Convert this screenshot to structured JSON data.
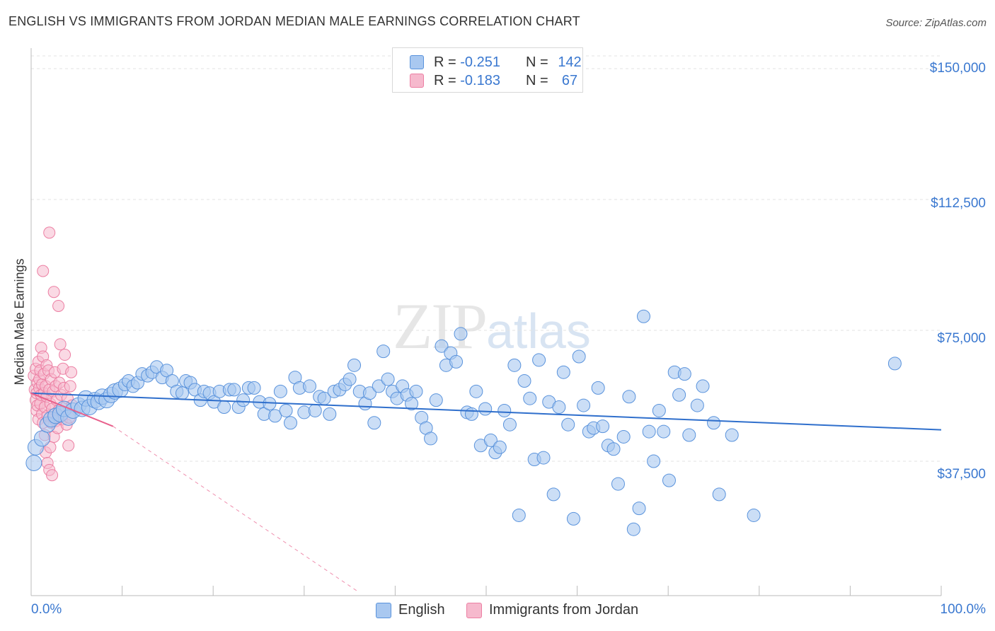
{
  "title": "ENGLISH VS IMMIGRANTS FROM JORDAN MEDIAN MALE EARNINGS CORRELATION CHART",
  "source": "Source: ZipAtlas.com",
  "watermark": {
    "zip": "ZIP",
    "atlas": "atlas"
  },
  "legend": {
    "english": {
      "r_label": "R = ",
      "r_value": "-0.251",
      "n_label": "N = ",
      "n_value": "142"
    },
    "jordan": {
      "r_label": "R = ",
      "r_value": "-0.183",
      "n_label": "N = ",
      "n_value": "67"
    }
  },
  "colors": {
    "english_fill": "#a9c8f0",
    "english_stroke": "#5a93dc",
    "english_line": "#2f6fcc",
    "jordan_fill": "#f6b9cd",
    "jordan_stroke": "#ec7fa3",
    "jordan_line": "#e8608c",
    "grid": "#e3e3e3",
    "axis_text": "#3a78d0"
  },
  "chart_data": {
    "type": "scatter",
    "title": "ENGLISH VS IMMIGRANTS FROM JORDAN MEDIAN MALE EARNINGS CORRELATION CHART",
    "xlabel": "",
    "ylabel": "Median Male Earnings",
    "xlim": [
      0,
      100
    ],
    "ylim": [
      0,
      155000
    ],
    "x_tick_labels": [
      "0.0%",
      "100.0%"
    ],
    "y_ticks": [
      37500,
      75000,
      112500,
      150000
    ],
    "y_tick_labels": [
      "$37,500",
      "$75,000",
      "$112,500",
      "$150,000"
    ],
    "grid": true,
    "series": [
      {
        "name": "English",
        "trend": {
          "x": [
            0,
            100
          ],
          "y": [
            57000,
            46500
          ]
        },
        "points": [
          [
            0.3,
            37000
          ],
          [
            0.5,
            41500
          ],
          [
            1.2,
            44000
          ],
          [
            1.8,
            48000
          ],
          [
            2.2,
            49500
          ],
          [
            2.7,
            50500
          ],
          [
            3.2,
            51000
          ],
          [
            3.6,
            52500
          ],
          [
            4.1,
            50000
          ],
          [
            4.6,
            52000
          ],
          [
            5.2,
            53500
          ],
          [
            5.6,
            52500
          ],
          [
            6.0,
            55500
          ],
          [
            6.4,
            53000
          ],
          [
            7.0,
            55000
          ],
          [
            7.4,
            54500
          ],
          [
            7.8,
            56000
          ],
          [
            8.3,
            55000
          ],
          [
            8.8,
            56500
          ],
          [
            9.2,
            57500
          ],
          [
            9.8,
            58000
          ],
          [
            10.3,
            59500
          ],
          [
            10.7,
            60500
          ],
          [
            11.2,
            59000
          ],
          [
            11.7,
            60000
          ],
          [
            12.2,
            62500
          ],
          [
            12.8,
            62000
          ],
          [
            13.3,
            63000
          ],
          [
            13.8,
            64500
          ],
          [
            14.4,
            61500
          ],
          [
            14.9,
            63500
          ],
          [
            15.5,
            60500
          ],
          [
            16.0,
            57500
          ],
          [
            16.6,
            57000
          ],
          [
            17.0,
            60500
          ],
          [
            17.5,
            60000
          ],
          [
            18.0,
            58000
          ],
          [
            18.6,
            55000
          ],
          [
            19.0,
            57500
          ],
          [
            19.6,
            57000
          ],
          [
            20.1,
            54500
          ],
          [
            20.7,
            57500
          ],
          [
            21.2,
            53000
          ],
          [
            21.8,
            58000
          ],
          [
            22.3,
            58000
          ],
          [
            22.8,
            53000
          ],
          [
            23.3,
            55000
          ],
          [
            23.9,
            58500
          ],
          [
            24.5,
            58500
          ],
          [
            25.1,
            54500
          ],
          [
            25.6,
            51000
          ],
          [
            26.2,
            54000
          ],
          [
            26.8,
            50500
          ],
          [
            27.4,
            57500
          ],
          [
            28.0,
            52000
          ],
          [
            28.5,
            48500
          ],
          [
            29.0,
            61500
          ],
          [
            29.5,
            58500
          ],
          [
            30.0,
            51500
          ],
          [
            30.6,
            59000
          ],
          [
            31.2,
            52000
          ],
          [
            31.7,
            56000
          ],
          [
            32.2,
            55500
          ],
          [
            32.8,
            51000
          ],
          [
            33.3,
            57500
          ],
          [
            33.9,
            58000
          ],
          [
            34.5,
            59500
          ],
          [
            35.0,
            61000
          ],
          [
            35.5,
            65000
          ],
          [
            36.1,
            57500
          ],
          [
            36.7,
            54000
          ],
          [
            37.2,
            57000
          ],
          [
            37.7,
            48500
          ],
          [
            38.2,
            59000
          ],
          [
            38.7,
            69000
          ],
          [
            39.2,
            61000
          ],
          [
            39.7,
            57500
          ],
          [
            40.2,
            55500
          ],
          [
            40.8,
            59000
          ],
          [
            41.3,
            56500
          ],
          [
            41.8,
            54000
          ],
          [
            42.3,
            57500
          ],
          [
            42.9,
            50000
          ],
          [
            43.4,
            47000
          ],
          [
            43.9,
            44000
          ],
          [
            44.5,
            55000
          ],
          [
            45.1,
            70500
          ],
          [
            45.6,
            65000
          ],
          [
            46.1,
            68500
          ],
          [
            46.7,
            66000
          ],
          [
            47.2,
            74000
          ],
          [
            47.9,
            51500
          ],
          [
            48.4,
            51000
          ],
          [
            48.9,
            57500
          ],
          [
            49.4,
            42000
          ],
          [
            49.9,
            52500
          ],
          [
            50.5,
            43500
          ],
          [
            51.0,
            40000
          ],
          [
            51.5,
            41500
          ],
          [
            52.0,
            52000
          ],
          [
            52.6,
            48000
          ],
          [
            53.1,
            65000
          ],
          [
            53.6,
            22000
          ],
          [
            54.2,
            60500
          ],
          [
            54.8,
            55500
          ],
          [
            55.3,
            38000
          ],
          [
            55.8,
            66500
          ],
          [
            56.3,
            38500
          ],
          [
            56.9,
            54500
          ],
          [
            57.4,
            28000
          ],
          [
            58.0,
            53000
          ],
          [
            58.5,
            63000
          ],
          [
            59.0,
            48000
          ],
          [
            59.6,
            21000
          ],
          [
            60.2,
            67500
          ],
          [
            60.7,
            53500
          ],
          [
            61.3,
            46000
          ],
          [
            61.8,
            47000
          ],
          [
            62.3,
            58500
          ],
          [
            62.8,
            47500
          ],
          [
            63.4,
            42000
          ],
          [
            64.0,
            41000
          ],
          [
            64.5,
            31000
          ],
          [
            65.1,
            44500
          ],
          [
            65.7,
            56000
          ],
          [
            66.2,
            18000
          ],
          [
            66.8,
            24000
          ],
          [
            67.3,
            79000
          ],
          [
            67.9,
            46000
          ],
          [
            68.4,
            37500
          ],
          [
            69.0,
            52000
          ],
          [
            69.5,
            46000
          ],
          [
            70.1,
            32000
          ],
          [
            70.7,
            63000
          ],
          [
            71.2,
            56500
          ],
          [
            71.8,
            62500
          ],
          [
            72.3,
            45000
          ],
          [
            73.2,
            53500
          ],
          [
            73.8,
            59000
          ],
          [
            75.0,
            48500
          ],
          [
            75.6,
            28000
          ],
          [
            77.0,
            45000
          ],
          [
            79.4,
            22000
          ],
          [
            94.9,
            65500
          ]
        ]
      },
      {
        "name": "Immigrants from Jordan",
        "trend": {
          "x": [
            0,
            9
          ],
          "y": [
            57000,
            47500
          ]
        },
        "trend_dashed": {
          "x": [
            9,
            36
          ],
          "y": [
            47500,
            0
          ]
        },
        "points": [
          [
            0.3,
            62000
          ],
          [
            0.4,
            58000
          ],
          [
            0.5,
            55000
          ],
          [
            0.5,
            64000
          ],
          [
            0.6,
            52000
          ],
          [
            0.6,
            57000
          ],
          [
            0.7,
            60000
          ],
          [
            0.7,
            53500
          ],
          [
            0.8,
            66000
          ],
          [
            0.8,
            49500
          ],
          [
            0.9,
            58500
          ],
          [
            0.9,
            61000
          ],
          [
            1.0,
            54000
          ],
          [
            1.0,
            63500
          ],
          [
            1.1,
            56500
          ],
          [
            1.1,
            70000
          ],
          [
            1.2,
            51000
          ],
          [
            1.2,
            59500
          ],
          [
            1.3,
            67500
          ],
          [
            1.3,
            48500
          ],
          [
            1.4,
            57000
          ],
          [
            1.4,
            62500
          ],
          [
            1.5,
            53000
          ],
          [
            1.5,
            45000
          ],
          [
            1.6,
            59000
          ],
          [
            1.6,
            40000
          ],
          [
            1.7,
            56000
          ],
          [
            1.7,
            65000
          ],
          [
            1.8,
            50500
          ],
          [
            1.8,
            37000
          ],
          [
            1.9,
            63500
          ],
          [
            2.0,
            58000
          ],
          [
            2.0,
            35000
          ],
          [
            2.1,
            54000
          ],
          [
            2.1,
            41500
          ],
          [
            2.2,
            48500
          ],
          [
            2.2,
            61000
          ],
          [
            2.3,
            52500
          ],
          [
            2.3,
            33500
          ],
          [
            2.4,
            57500
          ],
          [
            2.4,
            50000
          ],
          [
            2.5,
            44500
          ],
          [
            2.6,
            63000
          ],
          [
            2.7,
            49000
          ],
          [
            2.7,
            59000
          ],
          [
            2.8,
            55000
          ],
          [
            2.9,
            47000
          ],
          [
            3.0,
            82000
          ],
          [
            3.0,
            52000
          ],
          [
            3.1,
            60000
          ],
          [
            3.2,
            71000
          ],
          [
            3.3,
            56500
          ],
          [
            3.4,
            49500
          ],
          [
            3.5,
            64000
          ],
          [
            3.6,
            58500
          ],
          [
            3.7,
            68000
          ],
          [
            3.8,
            53000
          ],
          [
            3.9,
            48000
          ],
          [
            4.0,
            55500
          ],
          [
            4.1,
            42000
          ],
          [
            4.2,
            50000
          ],
          [
            4.3,
            59000
          ],
          [
            4.4,
            63000
          ],
          [
            4.5,
            53500
          ],
          [
            2.0,
            103000
          ],
          [
            1.3,
            92000
          ],
          [
            2.5,
            86000
          ]
        ]
      }
    ]
  },
  "x_tick_labels": {
    "left": "0.0%",
    "right": "100.0%"
  },
  "y_axis_label": "Median Male Earnings",
  "bottom_legend": {
    "english": "English",
    "jordan": "Immigrants from Jordan"
  }
}
